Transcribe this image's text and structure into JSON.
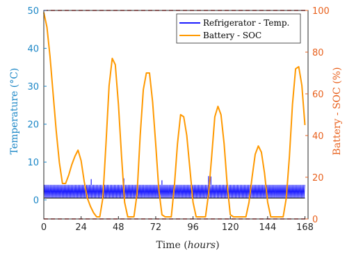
{
  "chart_data": {
    "type": "line",
    "xlabel": "Time (hours)",
    "ylabel_left": "Temperature (°C)",
    "ylabel_right": "Battery - SOC (%)",
    "xlim": [
      0,
      170
    ],
    "ylim_left": [
      -5,
      50
    ],
    "ylim_right": [
      0,
      100
    ],
    "x_ticks": [
      0,
      24,
      48,
      72,
      96,
      120,
      144,
      168
    ],
    "y_ticks_left": [
      0,
      10,
      20,
      30,
      40,
      50
    ],
    "y_ticks_right": [
      0,
      20,
      40,
      60,
      80,
      100
    ],
    "grid": false,
    "legend_position": "top-right",
    "reference_lines": [
      {
        "axis": "left",
        "y": 50,
        "style": "dashed",
        "color": "#e02020"
      },
      {
        "axis": "left",
        "y": -5,
        "style": "dashed",
        "color": "#e02020"
      }
    ],
    "series": [
      {
        "name": "Refrigerator - Temp.",
        "axis": "left",
        "color": "#1a1aff",
        "band_low": 0.5,
        "band_high": 4.0,
        "spikes": [
          {
            "x": 30.5,
            "y": 5.5
          },
          {
            "x": 51.5,
            "y": 5.7
          },
          {
            "x": 76.0,
            "y": 5.2
          },
          {
            "x": 106.0,
            "y": 6.3
          },
          {
            "x": 107.5,
            "y": 6.2
          }
        ]
      },
      {
        "name": "Battery - SOC",
        "axis": "right",
        "color": "#ff9900",
        "x": [
          0,
          2,
          4,
          6,
          8,
          10,
          12,
          14,
          16,
          18,
          20,
          22,
          24,
          26,
          28,
          30,
          32,
          34,
          36,
          38,
          40,
          42,
          44,
          46,
          48,
          50,
          52,
          54,
          56,
          58,
          60,
          62,
          64,
          66,
          68,
          70,
          72,
          74,
          76,
          78,
          80,
          82,
          84,
          86,
          88,
          90,
          92,
          94,
          96,
          98,
          100,
          102,
          104,
          106,
          108,
          110,
          112,
          114,
          116,
          118,
          120,
          122,
          124,
          126,
          128,
          130,
          132,
          134,
          136,
          138,
          140,
          142,
          144,
          146,
          148,
          150,
          152,
          154,
          156,
          158,
          160,
          162,
          164,
          166,
          168
        ],
        "values": [
          99,
          92,
          78,
          60,
          42,
          27,
          17,
          17,
          21,
          26,
          30,
          33,
          28,
          18,
          10,
          6,
          3,
          1,
          1,
          10,
          36,
          64,
          77,
          74,
          55,
          30,
          8,
          1,
          1,
          1,
          12,
          40,
          62,
          70,
          70,
          56,
          36,
          14,
          2,
          1,
          1,
          1,
          16,
          36,
          50,
          49,
          40,
          24,
          8,
          1,
          1,
          1,
          1,
          12,
          30,
          49,
          54,
          50,
          36,
          16,
          2,
          1,
          1,
          1,
          1,
          1,
          8,
          20,
          31,
          35,
          32,
          22,
          8,
          1,
          1,
          1,
          1,
          1,
          10,
          30,
          55,
          72,
          73,
          64,
          45
        ]
      }
    ],
    "colors": {
      "left_axis": "#1a86c6",
      "right_axis": "#e8601c",
      "frame": "#262626"
    }
  }
}
